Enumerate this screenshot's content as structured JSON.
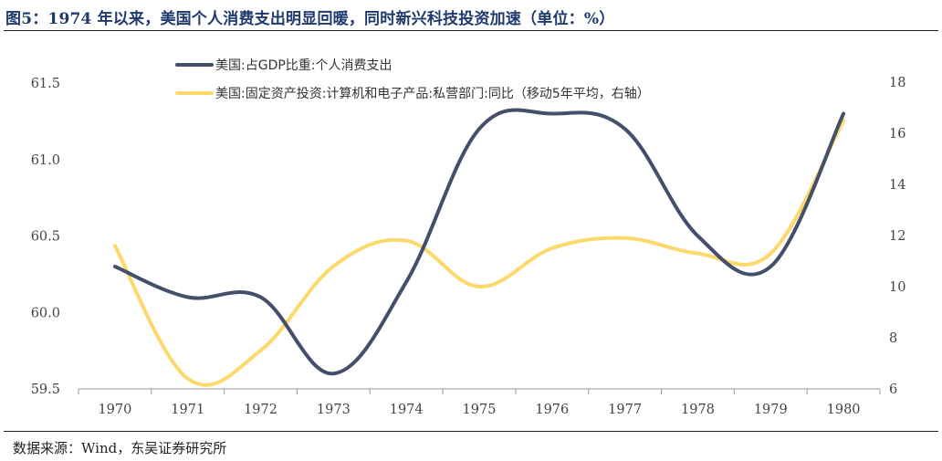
{
  "title": "图5：1974 年以来，美国个人消费支出明显回暖，同时新兴科技投资加速（单位：%）",
  "source": "数据来源：Wind，东吴证券研究所",
  "colors": {
    "series1": "#44506b",
    "series2": "#fdd86b",
    "title": "#1f3a6e"
  },
  "chart_data": {
    "type": "line",
    "categories": [
      "1970",
      "1971",
      "1972",
      "1973",
      "1974",
      "1975",
      "1976",
      "1977",
      "1978",
      "1979",
      "1980"
    ],
    "x_range": [
      1969.5,
      1980.5
    ],
    "left_axis": {
      "ylim": [
        59.5,
        61.6
      ],
      "ticks": [
        "59.5",
        "60.0",
        "60.5",
        "61.0",
        "61.5"
      ],
      "tick_values": [
        59.5,
        60.0,
        60.5,
        61.0,
        61.5
      ]
    },
    "right_axis": {
      "ylim": [
        6,
        18.5
      ],
      "ticks": [
        "6",
        "8",
        "10",
        "12",
        "14",
        "16",
        "18"
      ],
      "tick_values": [
        6,
        8,
        10,
        12,
        14,
        16,
        18
      ]
    },
    "grid": false,
    "legend_position": "top-left",
    "series": [
      {
        "name": "美国:占GDP比重:个人消费支出",
        "axis": "left",
        "x": [
          1970,
          1971,
          1972,
          1973,
          1974,
          1975,
          1976,
          1977,
          1978,
          1979,
          1980
        ],
        "values": [
          60.3,
          60.1,
          60.1,
          59.6,
          60.2,
          61.2,
          61.3,
          61.2,
          60.5,
          60.3,
          61.3
        ]
      },
      {
        "name": "美国:固定资产投资:计算机和电子产品:私营部门:同比（移动5年平均，右轴）",
        "axis": "right",
        "x": [
          1970,
          1971,
          1972,
          1973,
          1974,
          1975,
          1976,
          1977,
          1978,
          1979,
          1980
        ],
        "values": [
          11.6,
          6.4,
          7.5,
          10.8,
          11.8,
          10.0,
          11.5,
          11.9,
          11.3,
          11.3,
          16.5
        ]
      }
    ]
  }
}
